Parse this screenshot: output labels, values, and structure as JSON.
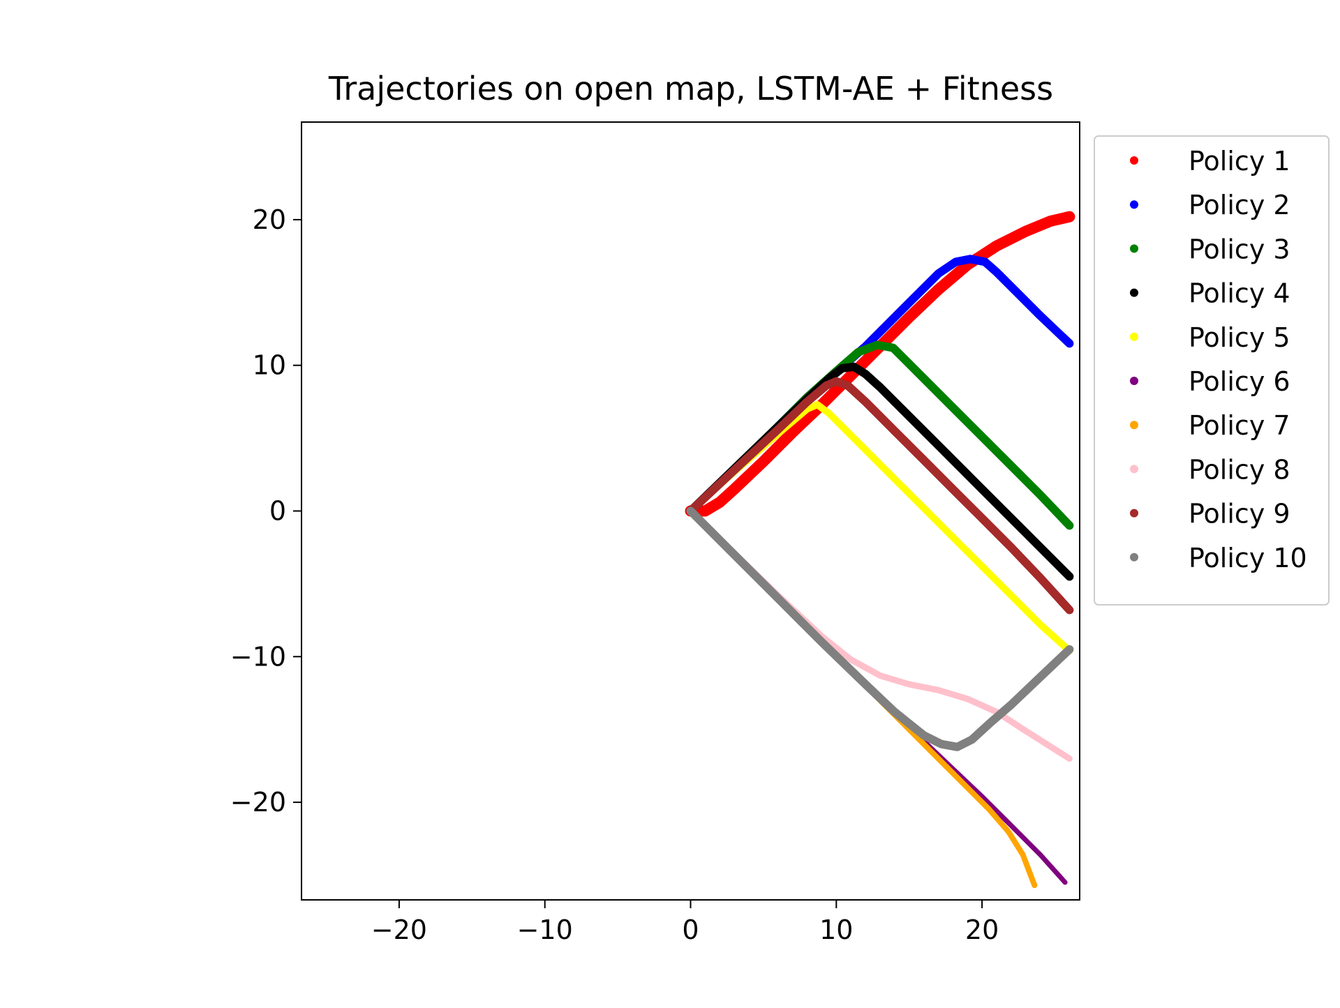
{
  "chart_data": {
    "type": "scatter",
    "title": "Trajectories on open map, LSTM-AE + Fitness",
    "xlabel": "",
    "ylabel": "",
    "xlim": [
      -26.7,
      26.7
    ],
    "ylim": [
      -26.7,
      26.7
    ],
    "xticks": [
      -20,
      -10,
      0,
      10,
      20
    ],
    "yticks": [
      -20,
      -10,
      0,
      10,
      20
    ],
    "xtick_labels": [
      "−20",
      "−10",
      "0",
      "10",
      "20"
    ],
    "ytick_labels": [
      "−20",
      "−10",
      "0",
      "10",
      "20"
    ],
    "grid": false,
    "legend_placement": "outside upper right",
    "series": [
      {
        "name": "Policy 1",
        "color": "#ff0000",
        "width": 16,
        "points": [
          [
            0,
            0
          ],
          [
            1,
            0
          ],
          [
            2,
            0.6
          ],
          [
            3,
            1.5
          ],
          [
            5,
            3.4
          ],
          [
            7,
            5.4
          ],
          [
            9,
            7.3
          ],
          [
            11,
            9.3
          ],
          [
            13,
            11.3
          ],
          [
            15,
            13.3
          ],
          [
            17,
            15.2
          ],
          [
            19,
            16.9
          ],
          [
            21,
            18.2
          ],
          [
            23,
            19.2
          ],
          [
            24.7,
            19.9
          ],
          [
            26,
            20.2
          ]
        ]
      },
      {
        "name": "Policy 2",
        "color": "#0000ff",
        "width": 12,
        "points": [
          [
            0,
            0
          ],
          [
            4,
            3.8
          ],
          [
            8,
            7.8
          ],
          [
            12,
            11.3
          ],
          [
            15,
            14.3
          ],
          [
            17,
            16.3
          ],
          [
            18.2,
            17.1
          ],
          [
            19.2,
            17.3
          ],
          [
            20.2,
            17.1
          ],
          [
            21,
            16.4
          ],
          [
            22.5,
            14.9
          ],
          [
            24,
            13.4
          ],
          [
            26,
            11.5
          ]
        ]
      },
      {
        "name": "Policy 3",
        "color": "#008000",
        "width": 12,
        "points": [
          [
            0,
            0
          ],
          [
            4,
            3.8
          ],
          [
            8,
            7.8
          ],
          [
            10,
            9.6
          ],
          [
            11.5,
            10.9
          ],
          [
            12.8,
            11.4
          ],
          [
            13.9,
            11.2
          ],
          [
            14.8,
            10.3
          ],
          [
            16,
            9.1
          ],
          [
            18,
            7.1
          ],
          [
            20,
            5.1
          ],
          [
            22,
            3.1
          ],
          [
            24,
            1.1
          ],
          [
            26,
            -1.0
          ]
        ]
      },
      {
        "name": "Policy 4",
        "color": "#000000",
        "width": 12,
        "points": [
          [
            0,
            0
          ],
          [
            3,
            2.9
          ],
          [
            6,
            5.8
          ],
          [
            8,
            7.7
          ],
          [
            9.5,
            9.1
          ],
          [
            10.4,
            9.8
          ],
          [
            11.2,
            9.9
          ],
          [
            12,
            9.4
          ],
          [
            13,
            8.5
          ],
          [
            15,
            6.5
          ],
          [
            17,
            4.5
          ],
          [
            19,
            2.5
          ],
          [
            21,
            0.5
          ],
          [
            23,
            -1.5
          ],
          [
            26,
            -4.5
          ]
        ]
      },
      {
        "name": "Policy 5",
        "color": "#ffff00",
        "width": 10,
        "points": [
          [
            0,
            0
          ],
          [
            3,
            2.7
          ],
          [
            6,
            5.3
          ],
          [
            8,
            7.0
          ],
          [
            8.7,
            7.3
          ],
          [
            9.5,
            6.7
          ],
          [
            12,
            4.2
          ],
          [
            14,
            2.2
          ],
          [
            16,
            0.2
          ],
          [
            18,
            -1.8
          ],
          [
            20,
            -3.8
          ],
          [
            22,
            -5.8
          ],
          [
            24,
            -7.8
          ],
          [
            26,
            -9.6
          ]
        ]
      },
      {
        "name": "Policy 6",
        "color": "#800080",
        "width": 7,
        "points": [
          [
            0,
            0
          ],
          [
            4,
            -3.9
          ],
          [
            8,
            -7.9
          ],
          [
            12,
            -11.9
          ],
          [
            16,
            -15.8
          ],
          [
            18,
            -17.7
          ],
          [
            20,
            -19.6
          ],
          [
            22,
            -21.6
          ],
          [
            24,
            -23.6
          ],
          [
            25.7,
            -25.5
          ]
        ]
      },
      {
        "name": "Policy 7",
        "color": "#ffa500",
        "width": 8,
        "points": [
          [
            0,
            0
          ],
          [
            4,
            -4.0
          ],
          [
            8,
            -8.0
          ],
          [
            12,
            -12.0
          ],
          [
            15,
            -15.0
          ],
          [
            17,
            -17.0
          ],
          [
            19,
            -19.0
          ],
          [
            20.5,
            -20.5
          ],
          [
            21.8,
            -22.0
          ],
          [
            22.8,
            -23.6
          ],
          [
            23.6,
            -25.7
          ]
        ]
      },
      {
        "name": "Policy 8",
        "color": "#ffc0cb",
        "width": 9,
        "points": [
          [
            0,
            0
          ],
          [
            3,
            -2.9
          ],
          [
            6,
            -5.8
          ],
          [
            9,
            -8.6
          ],
          [
            11,
            -10.2
          ],
          [
            13,
            -11.3
          ],
          [
            15,
            -11.9
          ],
          [
            17,
            -12.3
          ],
          [
            19,
            -12.9
          ],
          [
            21,
            -13.8
          ],
          [
            23,
            -15.1
          ],
          [
            26,
            -17.0
          ]
        ]
      },
      {
        "name": "Policy 9",
        "color": "#a52a2a",
        "width": 12,
        "points": [
          [
            0,
            0
          ],
          [
            3,
            2.8
          ],
          [
            6,
            5.6
          ],
          [
            8,
            7.5
          ],
          [
            9.3,
            8.6
          ],
          [
            10,
            8.9
          ],
          [
            10.8,
            8.6
          ],
          [
            12,
            7.5
          ],
          [
            14,
            5.5
          ],
          [
            16,
            3.5
          ],
          [
            18,
            1.5
          ],
          [
            20,
            -0.5
          ],
          [
            22,
            -2.5
          ],
          [
            24,
            -4.6
          ],
          [
            26,
            -6.8
          ]
        ]
      },
      {
        "name": "Policy 10",
        "color": "#808080",
        "width": 12,
        "points": [
          [
            0,
            0
          ],
          [
            3,
            -3.0
          ],
          [
            6,
            -6.0
          ],
          [
            9,
            -9.0
          ],
          [
            12,
            -11.9
          ],
          [
            14,
            -13.8
          ],
          [
            16,
            -15.4
          ],
          [
            17.2,
            -16.0
          ],
          [
            18.3,
            -16.2
          ],
          [
            19.3,
            -15.7
          ],
          [
            20.5,
            -14.6
          ],
          [
            22,
            -13.3
          ],
          [
            24,
            -11.4
          ],
          [
            26,
            -9.5
          ]
        ]
      }
    ]
  }
}
